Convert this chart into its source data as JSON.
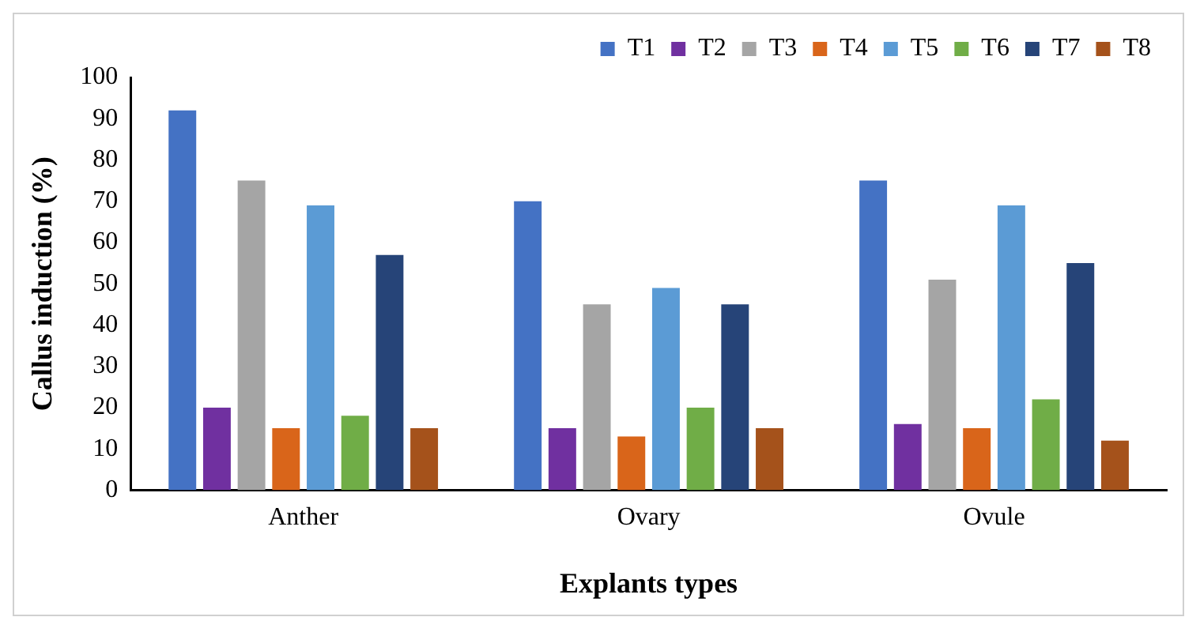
{
  "chart_data": {
    "type": "bar",
    "xlabel": "Explants types",
    "ylabel": "Callus induction (%)",
    "categories": [
      "Anther",
      "Ovary",
      "Ovule"
    ],
    "series": [
      {
        "name": "T1",
        "color": "#4472c4",
        "values": [
          92,
          70,
          75
        ]
      },
      {
        "name": "T2",
        "color": "#7030a0",
        "values": [
          20,
          15,
          16
        ]
      },
      {
        "name": "T3",
        "color": "#a5a5a5",
        "values": [
          75,
          45,
          51
        ]
      },
      {
        "name": "T4",
        "color": "#d9651a",
        "values": [
          15,
          13,
          15
        ]
      },
      {
        "name": "T5",
        "color": "#5b9bd5",
        "values": [
          69,
          49,
          69
        ]
      },
      {
        "name": "T6",
        "color": "#70ad47",
        "values": [
          18,
          20,
          22
        ]
      },
      {
        "name": "T7",
        "color": "#264478",
        "values": [
          57,
          45,
          55
        ]
      },
      {
        "name": "T8",
        "color": "#a5521b",
        "values": [
          15,
          15,
          12
        ]
      }
    ],
    "ylim": [
      0,
      100
    ],
    "yticks": [
      0,
      10,
      20,
      30,
      40,
      50,
      60,
      70,
      80,
      90,
      100
    ],
    "grid": false,
    "legend": "top right"
  }
}
